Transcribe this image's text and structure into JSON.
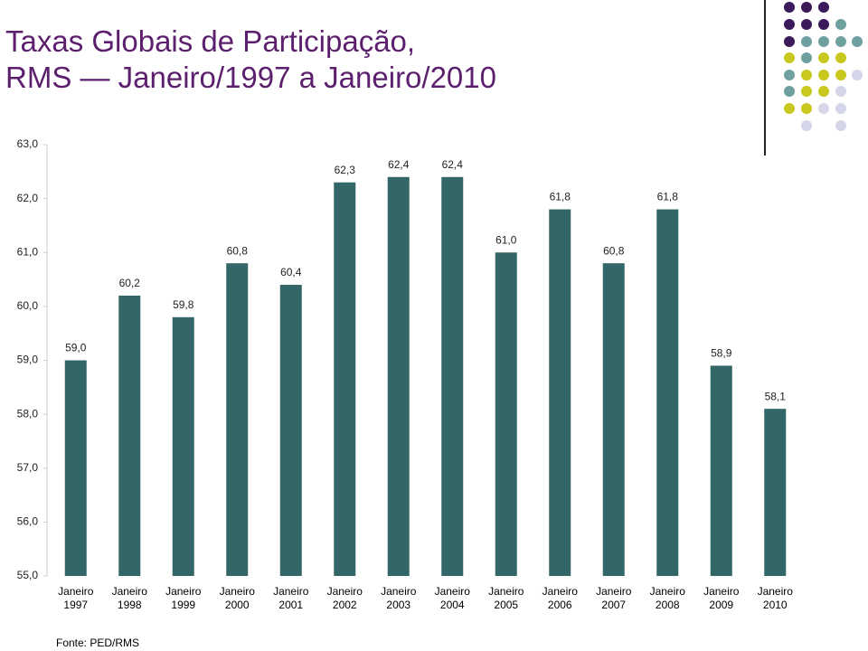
{
  "chart_data": {
    "type": "bar",
    "title": "Taxas Globais de Participação,\nRMS — Janeiro/1997 a Janeiro/2010",
    "categories": [
      "Janeiro 1997",
      "Janeiro 1998",
      "Janeiro 1999",
      "Janeiro 2000",
      "Janeiro 2001",
      "Janeiro 2002",
      "Janeiro 2003",
      "Janeiro 2004",
      "Janeiro 2005",
      "Janeiro 2006",
      "Janeiro 2007",
      "Janeiro 2008",
      "Janeiro 2009",
      "Janeiro 2010"
    ],
    "values": [
      59.0,
      60.2,
      59.8,
      60.8,
      60.4,
      62.3,
      62.4,
      62.4,
      61.0,
      61.8,
      60.8,
      61.8,
      58.9,
      58.1
    ],
    "value_labels": [
      "59,0",
      "60,2",
      "59,8",
      "60,8",
      "60,4",
      "62,3",
      "62,4",
      "62,4",
      "61,0",
      "61,8",
      "60,8",
      "61,8",
      "58,9",
      "58,1"
    ],
    "color": "#336666",
    "ylim": [
      55,
      63
    ],
    "yticks": [
      {
        "value": 55,
        "label": "55,0"
      },
      {
        "value": 56,
        "label": "56,0"
      },
      {
        "value": 57,
        "label": "57,0"
      },
      {
        "value": 58,
        "label": "58,0"
      },
      {
        "value": 59,
        "label": "59,0"
      },
      {
        "value": 60,
        "label": "60,0"
      },
      {
        "value": 61,
        "label": "61,0"
      },
      {
        "value": 62,
        "label": "62,0"
      },
      {
        "value": 63,
        "label": "63,0"
      }
    ],
    "grid": false,
    "source": "Fonte: PED/RMS"
  }
}
